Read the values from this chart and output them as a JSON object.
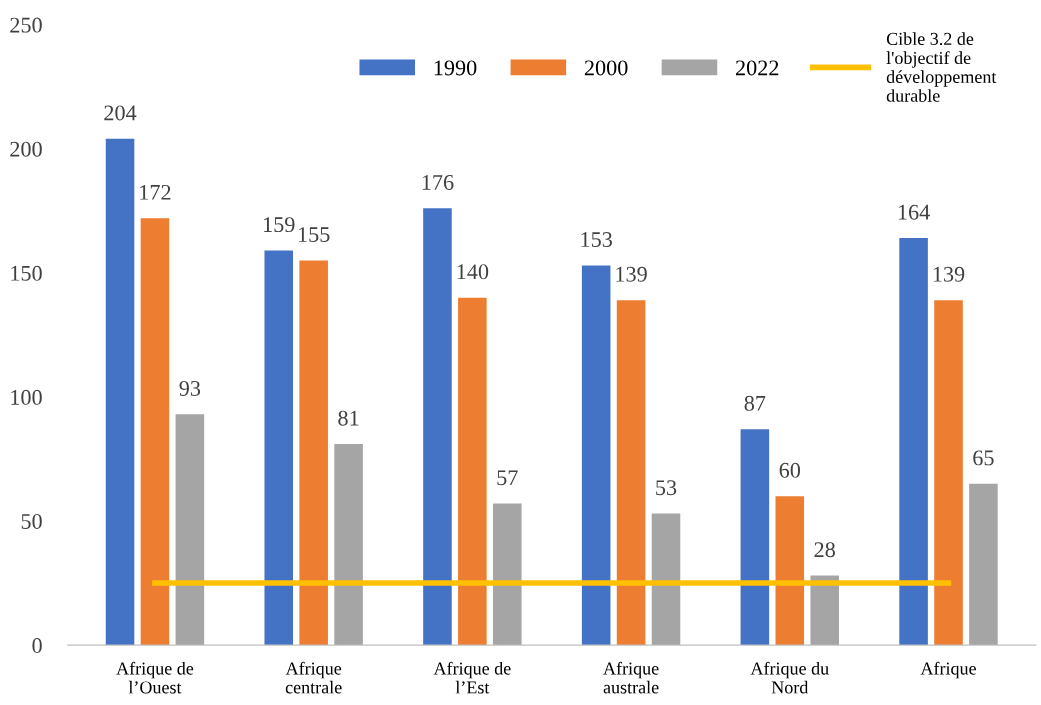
{
  "chart_data": {
    "type": "bar",
    "categories": [
      "Afrique de\nl’Ouest",
      "Afrique\ncentrale",
      "Afrique de\nl’Est",
      "Afrique\naustrale",
      "Afrique du\nNord",
      "Afrique"
    ],
    "series": [
      {
        "name": "1990",
        "color": "#4472c4",
        "values": [
          204,
          159,
          176,
          153,
          87,
          164
        ]
      },
      {
        "name": "2000",
        "color": "#ed7d31",
        "values": [
          172,
          155,
          140,
          139,
          60,
          139
        ]
      },
      {
        "name": "2022",
        "color": "#a5a5a5",
        "values": [
          93,
          81,
          57,
          53,
          28,
          65
        ]
      },
      {
        "name": "Cible 3.2 de l'objectif de développement durable",
        "type": "line",
        "color": "#ffc000",
        "values": [
          25,
          25,
          25,
          25,
          25,
          25
        ],
        "marker": "none",
        "value_labels": [
          null,
          null,
          null,
          null,
          null,
          null
        ]
      }
    ],
    "ylim": [
      0,
      250
    ],
    "yticks": [
      0,
      50,
      100,
      150,
      200,
      250
    ],
    "grid": false,
    "legend": "top right",
    "data_labels": true
  }
}
